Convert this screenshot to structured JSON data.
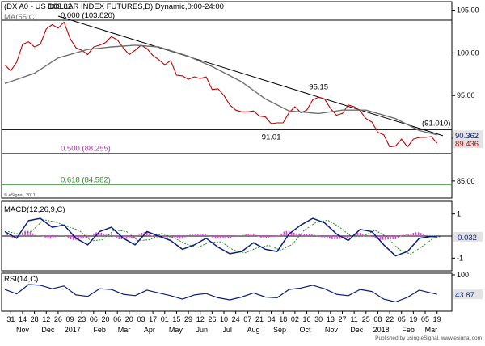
{
  "header": {
    "title": "(DX A0 - US DOLLAR INDEX FUTURES,D) Dynamic,0:00-24:00",
    "title_overlay": "103.82",
    "ma_label": "MA(55,C)",
    "copyright": "© eSignal, 2011"
  },
  "colors": {
    "price": "#c00000",
    "ma": "#707070",
    "trendline": "#000000",
    "fib_500": "#9e3a9e",
    "fib_618": "#2e8b2e",
    "macd": "#0a1f7a",
    "macd_signal": "#2e8b2e",
    "macd_hist": "#e040e0",
    "rsi": "#0a1f7a",
    "badge_bg": "#e3e3e3",
    "badge_text_red": "#c00000",
    "badge_text_blue": "#0a1f7a"
  },
  "chart_data": [
    {
      "type": "line",
      "panel": "price",
      "ylim": [
        83,
        106
      ],
      "y_ticks": [
        85,
        90,
        95,
        100,
        105
      ],
      "y_tick_labels": [
        "85.00",
        "",
        "95.00",
        "100.00",
        "105.00"
      ],
      "series": [
        {
          "x": [
            "2016-10-24",
            "2016-10-31",
            "2016-11-07",
            "2016-11-14",
            "2016-11-21",
            "2016-11-28",
            "2016-12-05",
            "2016-12-12",
            "2016-12-19",
            "2016-12-26",
            "2017-01-02",
            "2017-01-09",
            "2017-01-16",
            "2017-01-23",
            "2017-01-30",
            "2017-02-06",
            "2017-02-13",
            "2017-02-20",
            "2017-02-27",
            "2017-03-06",
            "2017-03-13",
            "2017-03-20",
            "2017-03-27",
            "2017-04-03",
            "2017-04-10",
            "2017-04-17",
            "2017-04-24",
            "2017-05-01",
            "2017-05-08",
            "2017-05-15",
            "2017-05-22",
            "2017-05-29",
            "2017-06-05",
            "2017-06-12",
            "2017-06-19",
            "2017-06-26",
            "2017-07-03",
            "2017-07-10",
            "2017-07-17",
            "2017-07-24",
            "2017-07-31",
            "2017-08-07",
            "2017-08-14",
            "2017-08-21",
            "2017-08-28",
            "2017-09-04",
            "2017-09-11",
            "2017-09-18",
            "2017-09-25",
            "2017-10-02",
            "2017-10-09",
            "2017-10-16",
            "2017-10-23",
            "2017-10-30",
            "2017-11-06",
            "2017-11-13",
            "2017-11-20",
            "2017-11-27",
            "2017-12-04",
            "2017-12-11",
            "2017-12-18",
            "2017-12-25",
            "2018-01-01",
            "2018-01-08",
            "2018-01-15",
            "2018-01-22",
            "2018-01-29",
            "2018-02-05",
            "2018-02-12",
            "2018-02-19",
            "2018-02-26",
            "2018-03-05",
            "2018-03-12",
            "2018-03-19"
          ],
          "values": [
            98.6,
            97.9,
            98.9,
            101.0,
            101.3,
            100.7,
            101.0,
            102.8,
            103.3,
            102.9,
            103.6,
            101.7,
            100.6,
            100.3,
            99.8,
            100.7,
            100.9,
            101.2,
            101.9,
            101.5,
            100.6,
            99.8,
            100.3,
            100.9,
            100.5,
            99.7,
            99.2,
            98.6,
            99.1,
            97.4,
            97.3,
            96.9,
            97.2,
            97.0,
            97.2,
            95.7,
            95.8,
            95.0,
            93.9,
            93.3,
            93.1,
            93.1,
            93.2,
            92.6,
            92.5,
            91.7,
            91.8,
            91.8,
            93.0,
            93.7,
            93.0,
            93.3,
            94.5,
            94.8,
            94.6,
            93.5,
            92.7,
            92.9,
            93.9,
            93.7,
            93.2,
            92.3,
            91.9,
            90.7,
            90.4,
            89.0,
            89.1,
            89.9,
            89.0,
            89.9,
            90.1,
            90.1,
            90.2,
            89.44
          ],
          "color_key": "price"
        },
        {
          "x": [
            "2016-10-24",
            "2016-11-28",
            "2016-12-26",
            "2017-01-30",
            "2017-02-27",
            "2017-03-27",
            "2017-04-24",
            "2017-05-29",
            "2017-06-26",
            "2017-07-31",
            "2017-08-28",
            "2017-09-25",
            "2017-10-30",
            "2017-11-27",
            "2017-12-25",
            "2018-01-29",
            "2018-02-26",
            "2018-03-19"
          ],
          "values": [
            96.4,
            97.6,
            99.4,
            100.4,
            100.7,
            100.9,
            100.7,
            99.6,
            98.4,
            96.6,
            94.6,
            93.2,
            92.9,
            93.3,
            93.3,
            92.3,
            90.9,
            90.4
          ],
          "color_key": "ma"
        }
      ],
      "horizontal_lines": [
        {
          "level": 103.82,
          "label": "0.000 (103.820)",
          "color_key": "trendline"
        },
        {
          "level": 91.01,
          "label": "",
          "color_key": "trendline"
        },
        {
          "level": 88.255,
          "label": "0.500 (88.255)",
          "color_key": "fib_500"
        },
        {
          "level": 84.582,
          "label": "0.618 (84.582)",
          "color_key": "fib_618"
        }
      ],
      "trendline": {
        "x": [
          "2016-12-26",
          "2018-03-26"
        ],
        "values": [
          104.3,
          90.3
        ],
        "end_label": "(91.010)"
      },
      "annotations": [
        {
          "x": "2017-10-30",
          "y": 95.15,
          "text": "95.15",
          "position": "above"
        },
        {
          "x": "2017-09-04",
          "y": 91.01,
          "text": "91.01",
          "position": "below"
        }
      ],
      "last_values": [
        {
          "value": 90.362,
          "text": "90.362",
          "color_key": "badge_text_blue"
        },
        {
          "value": 89.436,
          "text": "89.436",
          "color_key": "badge_text_red"
        }
      ]
    },
    {
      "type": "line",
      "panel": "macd",
      "title": "MACD(12,26,9,C)",
      "ylim": [
        -1.5,
        1.5
      ],
      "y_ticks": [
        1,
        -1
      ],
      "y_tick_labels": [
        "1",
        "-1"
      ],
      "series": [
        {
          "x": [
            "2016-10-24",
            "2016-11-07",
            "2016-11-21",
            "2016-12-05",
            "2016-12-19",
            "2017-01-02",
            "2017-01-16",
            "2017-01-30",
            "2017-02-13",
            "2017-02-27",
            "2017-03-13",
            "2017-03-27",
            "2017-04-10",
            "2017-04-24",
            "2017-05-08",
            "2017-05-22",
            "2017-06-05",
            "2017-06-19",
            "2017-07-03",
            "2017-07-17",
            "2017-07-31",
            "2017-08-14",
            "2017-08-28",
            "2017-09-11",
            "2017-09-25",
            "2017-10-09",
            "2017-10-23",
            "2017-11-06",
            "2017-11-20",
            "2017-12-04",
            "2017-12-18",
            "2018-01-01",
            "2018-01-15",
            "2018-01-29",
            "2018-02-12",
            "2018-02-26",
            "2018-03-12",
            "2018-03-19"
          ],
          "values": [
            0.2,
            -0.1,
            0.7,
            0.8,
            0.4,
            0.5,
            -0.1,
            -0.4,
            0.2,
            0.4,
            -0.1,
            -0.4,
            0.2,
            0.0,
            -0.2,
            -0.6,
            -0.4,
            -0.1,
            -0.5,
            -0.8,
            -0.7,
            -0.3,
            -0.6,
            -0.7,
            0.1,
            0.5,
            0.8,
            0.6,
            0.1,
            -0.2,
            0.3,
            0.2,
            -0.4,
            -0.9,
            -0.7,
            -0.1,
            -0.02,
            -0.032
          ],
          "color_key": "macd"
        }
      ],
      "last_values": [
        {
          "value": -0.032,
          "text": "-0.032",
          "color_key": "badge_text_blue"
        }
      ]
    },
    {
      "type": "line",
      "panel": "rsi",
      "title": "RSI(14,C)",
      "ylim": [
        0,
        100
      ],
      "y_ticks": [
        100
      ],
      "y_tick_labels": [
        "100"
      ],
      "series": [
        {
          "x": [
            "2016-10-24",
            "2016-11-07",
            "2016-11-21",
            "2016-12-05",
            "2016-12-19",
            "2017-01-02",
            "2017-01-16",
            "2017-01-30",
            "2017-02-13",
            "2017-02-27",
            "2017-03-13",
            "2017-03-27",
            "2017-04-10",
            "2017-04-24",
            "2017-05-08",
            "2017-05-22",
            "2017-06-05",
            "2017-06-19",
            "2017-07-03",
            "2017-07-17",
            "2017-07-31",
            "2017-08-14",
            "2017-08-28",
            "2017-09-11",
            "2017-09-25",
            "2017-10-09",
            "2017-10-23",
            "2017-11-06",
            "2017-11-20",
            "2017-12-04",
            "2017-12-18",
            "2018-01-01",
            "2018-01-15",
            "2018-01-29",
            "2018-02-12",
            "2018-02-26",
            "2018-03-12",
            "2018-03-19"
          ],
          "values": [
            58,
            45,
            72,
            70,
            60,
            68,
            42,
            38,
            60,
            58,
            44,
            40,
            56,
            48,
            40,
            30,
            42,
            46,
            34,
            28,
            36,
            48,
            36,
            34,
            58,
            62,
            70,
            60,
            44,
            40,
            58,
            52,
            30,
            22,
            35,
            56,
            48,
            43.87
          ],
          "color_key": "rsi"
        }
      ],
      "last_values": [
        {
          "value": 43.87,
          "text": "43.87",
          "color_key": "badge_text_blue"
        }
      ]
    }
  ],
  "x_axis": {
    "day_ticks": [
      {
        "x": "2016-10-31",
        "label": "31"
      },
      {
        "x": "2016-11-14",
        "label": "14"
      },
      {
        "x": "2016-11-28",
        "label": "28"
      },
      {
        "x": "2016-12-12",
        "label": "12"
      },
      {
        "x": "2016-12-26",
        "label": "26"
      },
      {
        "x": "2017-01-09",
        "label": "09"
      },
      {
        "x": "2017-01-23",
        "label": "23"
      },
      {
        "x": "2017-02-06",
        "label": "06"
      },
      {
        "x": "2017-02-20",
        "label": "20"
      },
      {
        "x": "2017-03-06",
        "label": "06"
      },
      {
        "x": "2017-03-20",
        "label": "20"
      },
      {
        "x": "2017-04-03",
        "label": "03"
      },
      {
        "x": "2017-04-17",
        "label": "17"
      },
      {
        "x": "2017-05-01",
        "label": "01"
      },
      {
        "x": "2017-05-15",
        "label": "15"
      },
      {
        "x": "2017-05-29",
        "label": "29"
      },
      {
        "x": "2017-06-12",
        "label": "12"
      },
      {
        "x": "2017-06-26",
        "label": "26"
      },
      {
        "x": "2017-07-10",
        "label": "10"
      },
      {
        "x": "2017-07-24",
        "label": "24"
      },
      {
        "x": "2017-08-07",
        "label": "07"
      },
      {
        "x": "2017-08-21",
        "label": "21"
      },
      {
        "x": "2017-09-04",
        "label": "04"
      },
      {
        "x": "2017-09-18",
        "label": "18"
      },
      {
        "x": "2017-10-02",
        "label": "02"
      },
      {
        "x": "2017-10-16",
        "label": "16"
      },
      {
        "x": "2017-10-30",
        "label": "30"
      },
      {
        "x": "2017-11-13",
        "label": "13"
      },
      {
        "x": "2017-11-27",
        "label": "27"
      },
      {
        "x": "2017-12-11",
        "label": "11"
      },
      {
        "x": "2017-12-25",
        "label": "25"
      },
      {
        "x": "2018-01-08",
        "label": "08"
      },
      {
        "x": "2018-01-22",
        "label": "22"
      },
      {
        "x": "2018-02-05",
        "label": "05"
      },
      {
        "x": "2018-02-19",
        "label": "19"
      },
      {
        "x": "2018-03-05",
        "label": "05"
      },
      {
        "x": "2018-03-19",
        "label": "19"
      }
    ],
    "month_labels": [
      {
        "x": "2016-11-14",
        "label": "Nov"
      },
      {
        "x": "2016-12-14",
        "label": "Dec"
      },
      {
        "x": "2017-01-12",
        "label": "2017"
      },
      {
        "x": "2017-02-13",
        "label": "Feb"
      },
      {
        "x": "2017-03-14",
        "label": "Mar"
      },
      {
        "x": "2017-04-13",
        "label": "Apr"
      },
      {
        "x": "2017-05-14",
        "label": "May"
      },
      {
        "x": "2017-06-14",
        "label": "Jun"
      },
      {
        "x": "2017-07-14",
        "label": "Jul"
      },
      {
        "x": "2017-08-14",
        "label": "Aug"
      },
      {
        "x": "2017-09-14",
        "label": "Sep"
      },
      {
        "x": "2017-10-14",
        "label": "Oct"
      },
      {
        "x": "2017-11-14",
        "label": "Nov"
      },
      {
        "x": "2017-12-14",
        "label": "Dec"
      },
      {
        "x": "2018-01-12",
        "label": "2018"
      },
      {
        "x": "2018-02-13",
        "label": "Feb"
      },
      {
        "x": "2018-03-12",
        "label": "Mar"
      }
    ]
  },
  "footer": {
    "publisher": "Published by using eSignal, www.esignal.com"
  }
}
